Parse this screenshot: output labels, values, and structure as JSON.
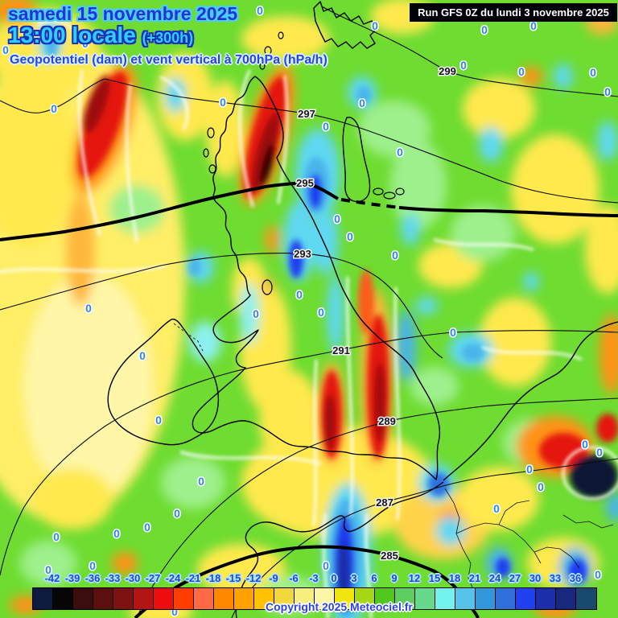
{
  "header": {
    "date_line": "samedi 15 novembre 2025",
    "time_line": "13:00 locale",
    "time_offset": "(+300h)",
    "subtitle": "Geopotentiel (dam) et vent vertical à 700hPa (hPa/h)",
    "run_info": "Run GFS 0Z du lundi 3 novembre 2025"
  },
  "map": {
    "zero_label": "0",
    "contours": [
      {
        "label": "299"
      },
      {
        "label": "297"
      },
      {
        "label": "295"
      },
      {
        "label": "293"
      },
      {
        "label": "291"
      },
      {
        "label": "289"
      },
      {
        "label": "287"
      },
      {
        "label": "285"
      }
    ]
  },
  "scale": {
    "values": [
      -42,
      -39,
      -36,
      -33,
      -30,
      -27,
      -24,
      -21,
      -18,
      -15,
      -12,
      -9,
      -6,
      -3,
      0,
      3,
      6,
      9,
      12,
      15,
      18,
      21,
      24,
      27,
      30,
      33,
      36
    ],
    "colors": [
      "#0d1b3e",
      "#060606",
      "#3b0d0d",
      "#5c0f0f",
      "#7e1212",
      "#b31414",
      "#ee0d0d",
      "#ff3d00",
      "#ff6a42",
      "#ff8800",
      "#ffa200",
      "#ffc200",
      "#f2d83a",
      "#f8ee7e",
      "#fbf7a6",
      "#f0e60e",
      "#a6d714",
      "#52c81f",
      "#5dcf60",
      "#66da8a",
      "#71f2ef",
      "#57c3ea",
      "#3397dc",
      "#2f70da",
      "#2140f0",
      "#1c2fa9",
      "#17287e",
      "#184a70"
    ]
  },
  "footer": {
    "copyright": "Copyright 2025 Meteociel.fr"
  },
  "colors": {
    "title_blue": "#2433d6",
    "title_cyan": "#2cd2fe",
    "zero_label_blue": "#2f86e8",
    "background_green": "#6edc30"
  }
}
